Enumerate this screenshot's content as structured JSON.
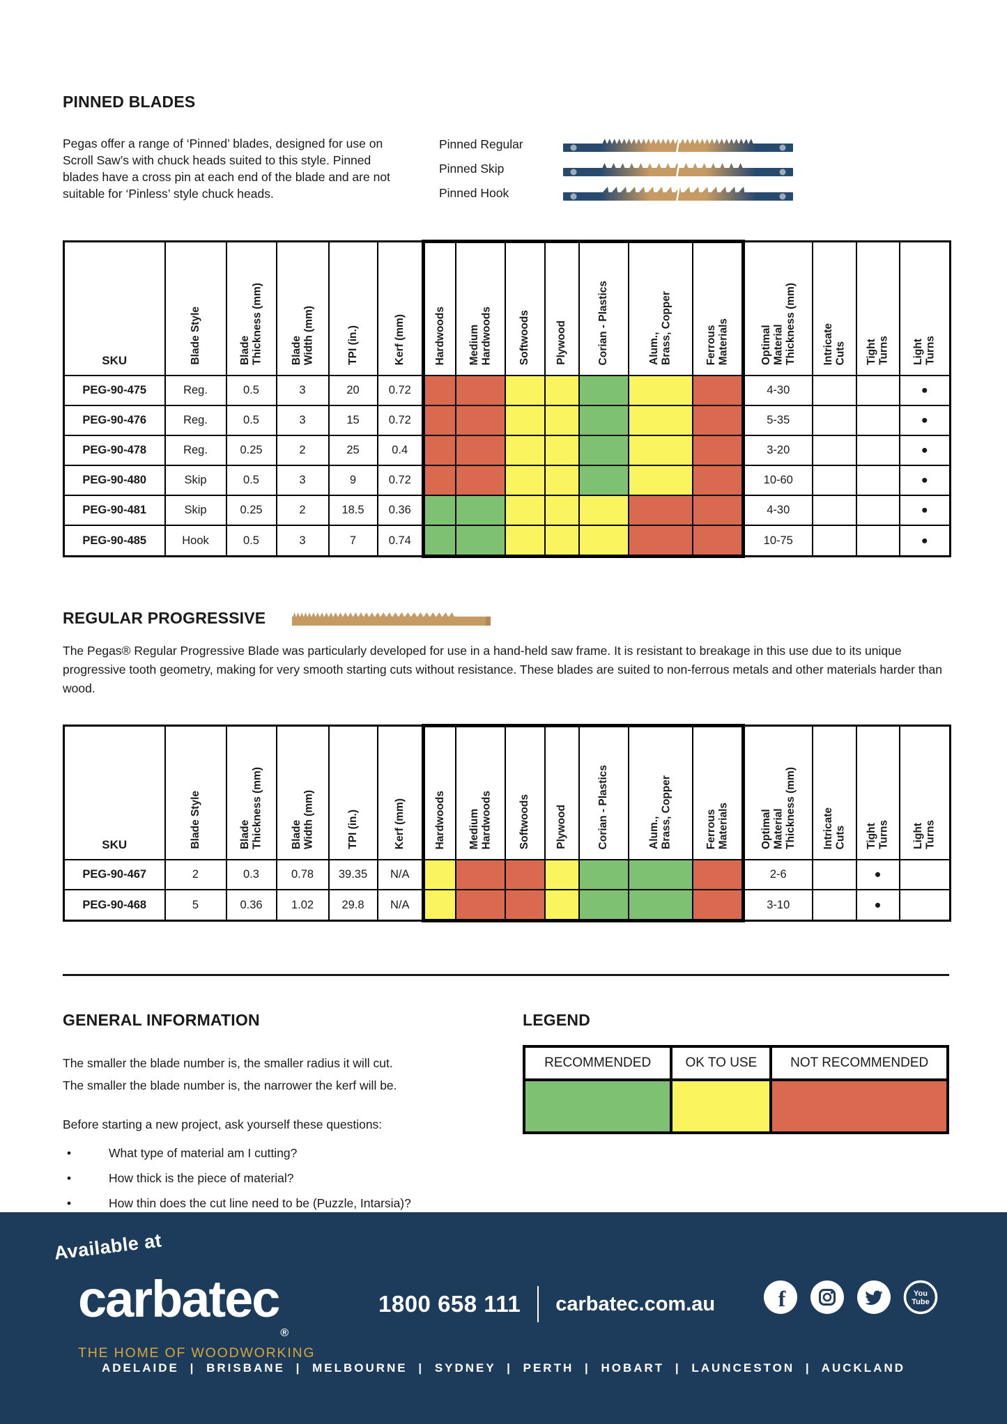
{
  "pinned": {
    "title": "PINNED BLADES",
    "intro": "Pegas offer a range of ‘Pinned’ blades, designed for use on Scroll Saw’s with chuck heads suited to this style. Pinned blades have a cross pin at each end of the blade and are not suitable for ‘Pinless’ style chuck heads.",
    "blade_types": [
      {
        "label": "Pinned Regular",
        "tooth_style": "regular"
      },
      {
        "label": "Pinned Skip",
        "tooth_style": "skip"
      },
      {
        "label": "Pinned Hook",
        "tooth_style": "hook"
      }
    ],
    "rows": [
      {
        "sku": "PEG-90-475",
        "blade_style": "Reg.",
        "thickness": "0.5",
        "width": "3",
        "tpi": "20",
        "kerf": "0.72",
        "ratings": [
          "not",
          "not",
          "ok",
          "ok",
          "rec",
          "ok",
          "not"
        ],
        "optimal_thickness": "4-30",
        "intricate_cuts": false,
        "tight_turns": false,
        "light_turns": true
      },
      {
        "sku": "PEG-90-476",
        "blade_style": "Reg.",
        "thickness": "0.5",
        "width": "3",
        "tpi": "15",
        "kerf": "0.72",
        "ratings": [
          "not",
          "not",
          "ok",
          "ok",
          "rec",
          "ok",
          "not"
        ],
        "optimal_thickness": "5-35",
        "intricate_cuts": false,
        "tight_turns": false,
        "light_turns": true
      },
      {
        "sku": "PEG-90-478",
        "blade_style": "Reg.",
        "thickness": "0.25",
        "width": "2",
        "tpi": "25",
        "kerf": "0.4",
        "ratings": [
          "not",
          "not",
          "ok",
          "ok",
          "rec",
          "ok",
          "not"
        ],
        "optimal_thickness": "3-20",
        "intricate_cuts": false,
        "tight_turns": false,
        "light_turns": true
      },
      {
        "sku": "PEG-90-480",
        "blade_style": "Skip",
        "thickness": "0.5",
        "width": "3",
        "tpi": "9",
        "kerf": "0.72",
        "ratings": [
          "not",
          "not",
          "ok",
          "ok",
          "rec",
          "ok",
          "not"
        ],
        "optimal_thickness": "10-60",
        "intricate_cuts": false,
        "tight_turns": false,
        "light_turns": true
      },
      {
        "sku": "PEG-90-481",
        "blade_style": "Skip",
        "thickness": "0.25",
        "width": "2",
        "tpi": "18.5",
        "kerf": "0.36",
        "ratings": [
          "rec",
          "rec",
          "ok",
          "ok",
          "ok",
          "not",
          "not"
        ],
        "optimal_thickness": "4-30",
        "intricate_cuts": false,
        "tight_turns": false,
        "light_turns": true
      },
      {
        "sku": "PEG-90-485",
        "blade_style": "Hook",
        "thickness": "0.5",
        "width": "3",
        "tpi": "7",
        "kerf": "0.74",
        "ratings": [
          "rec",
          "rec",
          "ok",
          "ok",
          "ok",
          "not",
          "not"
        ],
        "optimal_thickness": "10-75",
        "intricate_cuts": false,
        "tight_turns": false,
        "light_turns": true
      }
    ]
  },
  "progressive": {
    "title": "REGULAR PROGRESSIVE",
    "description": "The Pegas® Regular Progressive Blade was particularly developed for use in a hand-held saw frame. It is resistant to breakage in this use due to its unique progressive tooth geometry, making for very smooth starting cuts without resistance. These blades are suited to non-ferrous metals and other materials harder than wood.",
    "rows": [
      {
        "sku": "PEG-90-467",
        "blade_style": "2",
        "thickness": "0.3",
        "width": "0.78",
        "tpi": "39.35",
        "kerf": "N/A",
        "ratings": [
          "ok",
          "not",
          "not",
          "ok",
          "rec",
          "rec",
          "not"
        ],
        "optimal_thickness": "2-6",
        "intricate_cuts": false,
        "tight_turns": true,
        "light_turns": false
      },
      {
        "sku": "PEG-90-468",
        "blade_style": "5",
        "thickness": "0.36",
        "width": "1.02",
        "tpi": "29.8",
        "kerf": "N/A",
        "ratings": [
          "ok",
          "not",
          "not",
          "ok",
          "rec",
          "rec",
          "not"
        ],
        "optimal_thickness": "3-10",
        "intricate_cuts": false,
        "tight_turns": true,
        "light_turns": false
      }
    ]
  },
  "table": {
    "sku_header": "SKU",
    "spec_headers": [
      "Blade Style",
      "Blade\nThickness (mm)",
      "Blade\nWidth (mm)",
      "TPI (in.)",
      "Kerf (mm)"
    ],
    "material_headers": [
      "Hardwoods",
      "Medium\nHardwoods",
      "Softwoods",
      "Plywood",
      "Corian  - Plastics",
      "Alum.,\nBrass, Copper",
      "Ferrous\nMaterials"
    ],
    "tail_headers": [
      "Optimal\nMaterial\nThickness (mm)",
      "Intricate\nCuts",
      "Tight\nTurns",
      "Light\nTurns"
    ],
    "dot": "●"
  },
  "general_info": {
    "title": "GENERAL INFORMATION",
    "lines": [
      "The smaller the blade number is, the smaller radius it will cut.",
      "The smaller the blade number is, the narrower the kerf will be."
    ],
    "question_intro": "Before starting a new project, ask yourself these questions:",
    "bullets": [
      "What type of material am I cutting?",
      "How thick is the piece of material?",
      "How thin does the cut line need to be (Puzzle, Intarsia)?"
    ]
  },
  "legend": {
    "title": "LEGEND",
    "items": [
      {
        "label": "RECOMMENDED",
        "rating": "rec"
      },
      {
        "label": "OK TO USE",
        "rating": "ok"
      },
      {
        "label": "NOT RECOMMENDED",
        "rating": "not"
      }
    ]
  },
  "footer": {
    "available_at": "Available at",
    "logo": "carbatec",
    "registered": "®",
    "tagline": "THE HOME OF WOODWORKING",
    "phone": "1800 658 111",
    "website": "carbatec.com.au",
    "social_icons": [
      "facebook",
      "instagram",
      "twitter",
      "youtube"
    ],
    "cities": [
      "ADELAIDE",
      "BRISBANE",
      "MELBOURNE",
      "SYDNEY",
      "PERTH",
      "HOBART",
      "LAUNCESTON",
      "AUCKLAND"
    ],
    "separator": "|"
  },
  "colors": {
    "recommended": "#7EC173",
    "ok_to_use": "#FAF45F",
    "not_recommended": "#D96A50",
    "footer_bg": "#1D3C5C",
    "gold": "#D9A63C",
    "blade_navy": "#27496D",
    "blade_tan": "#C69A63",
    "pin_gray": "#9DACB9"
  }
}
